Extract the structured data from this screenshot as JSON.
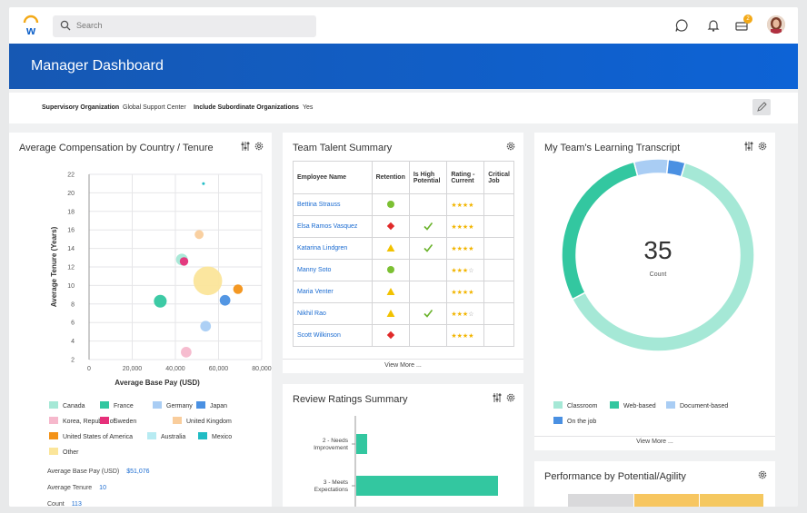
{
  "header": {
    "search_placeholder": "Search",
    "notification_count": "2"
  },
  "page": {
    "title": "Manager Dashboard"
  },
  "filters": {
    "org_label": "Supervisory Organization",
    "org_value": "Global Support Center",
    "sub_label": "Include Subordinate Organizations",
    "sub_value": "Yes"
  },
  "comp_card": {
    "title": "Average Compensation by Country / Tenure",
    "stats": [
      {
        "label": "Average Base Pay (USD)",
        "value": "$51,076"
      },
      {
        "label": "Average Tenure",
        "value": "10"
      },
      {
        "label": "Count",
        "value": "113"
      }
    ]
  },
  "chart_data": {
    "type": "scatter",
    "title": "Average Compensation by Country / Tenure",
    "xlabel": "Average Base Pay (USD)",
    "ylabel": "Average Tenure (Years)",
    "xlim": [
      0,
      80000
    ],
    "ylim": [
      2,
      22
    ],
    "x_ticks": [
      "0",
      "20,000",
      "40,000",
      "60,000",
      "80,000"
    ],
    "y_ticks": [
      "2",
      "4",
      "6",
      "8",
      "10",
      "12",
      "14",
      "16",
      "18",
      "20",
      "22"
    ],
    "series": [
      {
        "name": "Canada",
        "color": "#a5e8d6",
        "points": [
          {
            "x": 43000,
            "y": 12.8,
            "r": 0.55
          }
        ]
      },
      {
        "name": "France",
        "color": "#33c7a0",
        "points": [
          {
            "x": 33000,
            "y": 8.3,
            "r": 0.6
          }
        ]
      },
      {
        "name": "Germany",
        "color": "#a9cdf4",
        "points": [
          {
            "x": 54000,
            "y": 5.6,
            "r": 0.5
          }
        ]
      },
      {
        "name": "Japan",
        "color": "#4a90e2",
        "points": [
          {
            "x": 63000,
            "y": 8.4,
            "r": 0.5
          }
        ]
      },
      {
        "name": "Korea, Republic of",
        "color": "#f6b8cc",
        "points": [
          {
            "x": 45000,
            "y": 2.8,
            "r": 0.5
          }
        ]
      },
      {
        "name": "Sweden",
        "color": "#e6307a",
        "points": [
          {
            "x": 44000,
            "y": 12.6,
            "r": 0.4
          }
        ]
      },
      {
        "name": "United Kingdom",
        "color": "#f9cd9c",
        "points": [
          {
            "x": 51000,
            "y": 15.5,
            "r": 0.42
          }
        ]
      },
      {
        "name": "United States of America",
        "color": "#f39217",
        "points": [
          {
            "x": 69000,
            "y": 9.6,
            "r": 0.45
          }
        ]
      },
      {
        "name": "Australia",
        "color": "#b7ebf2",
        "points": [
          {
            "x": 53000,
            "y": 21.0,
            "r": 0.12
          }
        ]
      },
      {
        "name": "Mexico",
        "color": "#20bcc4",
        "points": [
          {
            "x": 53000,
            "y": 21.0,
            "r": 0.08
          }
        ]
      },
      {
        "name": "Other",
        "color": "#fbe59a",
        "points": [
          {
            "x": 55000,
            "y": 10.5,
            "r": 1.35
          }
        ]
      }
    ]
  },
  "legend": [
    {
      "label": "Canada",
      "color": "#a5e8d6"
    },
    {
      "label": "France",
      "color": "#33c7a0"
    },
    {
      "label": "Germany",
      "color": "#a9cdf4"
    },
    {
      "label": "Japan",
      "color": "#4a90e2"
    },
    {
      "label": "Korea, Republic of",
      "color": "#f6b8cc"
    },
    {
      "label": "Sweden",
      "color": "#e6307a"
    },
    {
      "label": "United Kingdom",
      "color": "#f9cd9c"
    },
    {
      "label": "United States of America",
      "color": "#f39217"
    },
    {
      "label": "Australia",
      "color": "#b7ebf2"
    },
    {
      "label": "Mexico",
      "color": "#20bcc4"
    },
    {
      "label": "Other",
      "color": "#fbe59a"
    }
  ],
  "talent_card": {
    "title": "Team Talent Summary",
    "columns": [
      "Employee Name",
      "Retention",
      "Is High Potential",
      "Rating - Current",
      "Critical Job"
    ],
    "rows": [
      {
        "name": "Bettina Strauss",
        "retention": "green-circle",
        "high_potential": "",
        "rating": 4
      },
      {
        "name": "Elsa Ramos Vasquez",
        "retention": "red-diamond",
        "high_potential": "check",
        "rating": 4
      },
      {
        "name": "Katarina Lindgren",
        "retention": "yellow-triangle",
        "high_potential": "check",
        "rating": 4
      },
      {
        "name": "Manny Soto",
        "retention": "green-circle",
        "high_potential": "",
        "rating": 3
      },
      {
        "name": "Maria Venter",
        "retention": "yellow-triangle",
        "high_potential": "",
        "rating": 4
      },
      {
        "name": "Nikhil Rao",
        "retention": "yellow-triangle",
        "high_potential": "check",
        "rating": 3
      },
      {
        "name": "Scott Wilkinson",
        "retention": "red-diamond",
        "high_potential": "",
        "rating": 4
      }
    ],
    "view_more": "View More ..."
  },
  "review_card": {
    "title": "Review Ratings Summary",
    "chart_data": {
      "type": "bar",
      "categories": [
        "2 - Needs Improvement",
        "3 - Meets Expectations"
      ],
      "values": [
        2,
        26
      ],
      "color": "#33c7a0"
    }
  },
  "learning_card": {
    "title": "My Team's Learning Transcript",
    "total": "35",
    "total_label": "Count",
    "chart_data": {
      "type": "pie",
      "labels": [
        "Classroom",
        "Web-based",
        "Document-based",
        "On the job"
      ],
      "values": [
        22,
        10,
        2,
        1
      ],
      "colors": [
        "#a5e8d6",
        "#33c7a0",
        "#a9cdf4",
        "#4a90e2"
      ]
    },
    "view_more": "View More ..."
  },
  "performance_card": {
    "title": "Performance by Potential/Agility"
  }
}
